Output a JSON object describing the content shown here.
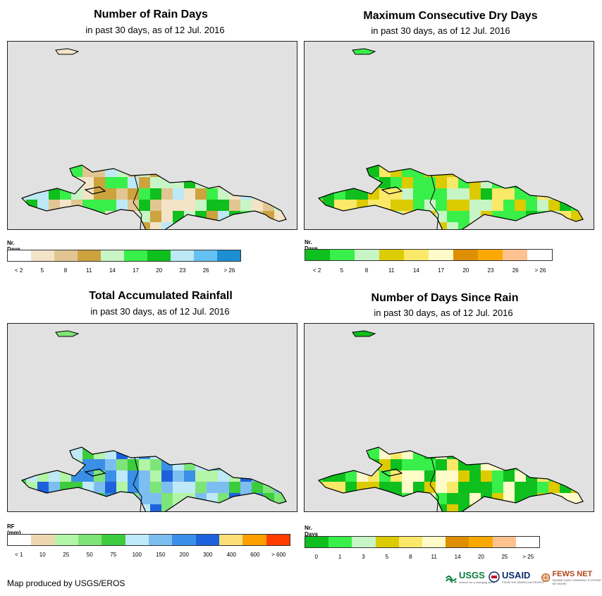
{
  "panels": [
    {
      "id": "rain-days",
      "title": "Number of Rain Days",
      "subtitle": "in past 30 days, as of 12 Jul. 2016",
      "legend_title": "Nr. Days",
      "legend_colors": [
        "#ffffff",
        "#f3e4c8",
        "#e2c692",
        "#cda33e",
        "#c8f5c5",
        "#39ef49",
        "#0fbf1d",
        "#bde9f7",
        "#66c1f3",
        "#1c8fd3"
      ],
      "legend_labels": [
        "< 2",
        "5",
        "8",
        "11",
        "14",
        "17",
        "20",
        "23",
        "26",
        "> 26"
      ],
      "label_mode": "center",
      "palette": [
        "#f3e4c8",
        "#e2c692",
        "#cda33e",
        "#c8f5c5",
        "#39ef49",
        "#0fbf1d",
        "#bde9f7"
      ]
    },
    {
      "id": "dry-days",
      "title": "Maximum Consecutive Dry Days",
      "subtitle": "in past 30 days, as of 12 Jul. 2016",
      "legend_title": "Nr. Days",
      "legend_colors": [
        "#0fbf1d",
        "#39ef49",
        "#c8f5c5",
        "#dccb00",
        "#fae869",
        "#fffbc8",
        "#de8f00",
        "#fba900",
        "#fdc28f",
        "#ffffff"
      ],
      "legend_labels": [
        "< 2",
        "5",
        "8",
        "11",
        "14",
        "17",
        "20",
        "23",
        "26",
        "> 26"
      ],
      "label_mode": "center",
      "palette": [
        "#39ef49",
        "#0fbf1d",
        "#c8f5c5",
        "#dccb00",
        "#fae869",
        "#39ef49"
      ]
    },
    {
      "id": "rainfall",
      "title": "Total Accumulated Rainfall",
      "subtitle": "in past 30 days, as of 12 Jul. 2016",
      "legend_title": "RF (mm)",
      "legend_colors": [
        "#ffffff",
        "#ecd7b0",
        "#b3f5a6",
        "#7de578",
        "#3ccc3e",
        "#bfe9f7",
        "#7dbef1",
        "#3a8fe6",
        "#1d62dc",
        "#fadf77",
        "#fd9f00",
        "#ff3c00"
      ],
      "legend_labels": [
        "< 1",
        "10",
        "25",
        "50",
        "75",
        "100",
        "150",
        "200",
        "300",
        "400",
        "600",
        "> 600"
      ],
      "label_mode": "center",
      "palette": [
        "#7de578",
        "#3ccc3e",
        "#7dbef1",
        "#3a8fe6",
        "#1d62dc",
        "#bfe9f7",
        "#b3f5a6"
      ]
    },
    {
      "id": "days-since-rain",
      "title": "Number of Days Since Rain",
      "subtitle": "in past 30 days, as of 12 Jul. 2016",
      "legend_title": "Nr. Days",
      "legend_colors": [
        "#0fbf1d",
        "#39ef49",
        "#c8f5c5",
        "#dccb00",
        "#fae869",
        "#fffbc8",
        "#de8f00",
        "#fba900",
        "#fdc28f",
        "#ffffff"
      ],
      "legend_labels": [
        "0",
        "1",
        "3",
        "5",
        "8",
        "11",
        "14",
        "20",
        "25",
        "> 25"
      ],
      "label_mode": "center",
      "palette": [
        "#0fbf1d",
        "#39ef49",
        "#fae869",
        "#fffbc8",
        "#dccb00",
        "#0fbf1d"
      ]
    }
  ],
  "footer": {
    "credit": "Map produced by USGS/EROS",
    "logos": [
      {
        "name": "USGS",
        "text": "USGS",
        "tagline": "science for a changing world",
        "color": "#0d7d3f"
      },
      {
        "name": "USAID",
        "text": "USAID",
        "tagline": "FROM THE AMERICAN PEOPLE",
        "color": "#0d2c6c"
      },
      {
        "name": "FEWS NET",
        "text": "FEWS NET",
        "tagline": "FAMINE EARLY WARNING SYSTEMS NETWORK",
        "color": "#b2461a"
      }
    ]
  }
}
